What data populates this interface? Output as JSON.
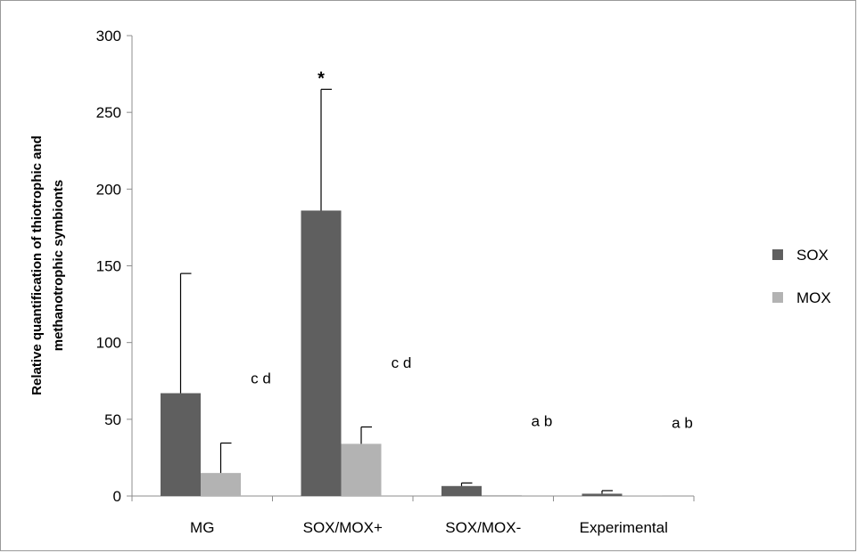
{
  "chart_data": {
    "type": "bar",
    "ylabel_lines": [
      "Relative quantification of thiotrophic and",
      "methanotrophic symbionts"
    ],
    "ylim": [
      0,
      300
    ],
    "yticks": [
      0,
      50,
      100,
      150,
      200,
      250,
      300
    ],
    "categories": [
      "MG",
      "SOX/MOX+",
      "SOX/MOX-",
      "Experimental"
    ],
    "series": [
      {
        "name": "SOX",
        "color": "#5f5f5f",
        "values": [
          67,
          186,
          6.5,
          1.5
        ],
        "error_upper": [
          145,
          265,
          8.5,
          3.5
        ]
      },
      {
        "name": "MOX",
        "color": "#b3b3b3",
        "values": [
          15,
          34,
          0.6,
          0.4
        ],
        "error_upper": [
          34.5,
          45,
          0.6,
          0.4
        ]
      }
    ],
    "annotations": [
      {
        "text": "c d",
        "category_index": 0,
        "y": 77
      },
      {
        "text": "c d",
        "category_index": 1,
        "y": 87
      },
      {
        "text": "a b",
        "category_index": 2,
        "y": 49
      },
      {
        "text": "a b",
        "category_index": 3,
        "y": 48
      }
    ],
    "significance": [
      {
        "text": "*",
        "category_index": 1,
        "series_index": 0
      }
    ],
    "legend_position": "right",
    "grid": false
  }
}
